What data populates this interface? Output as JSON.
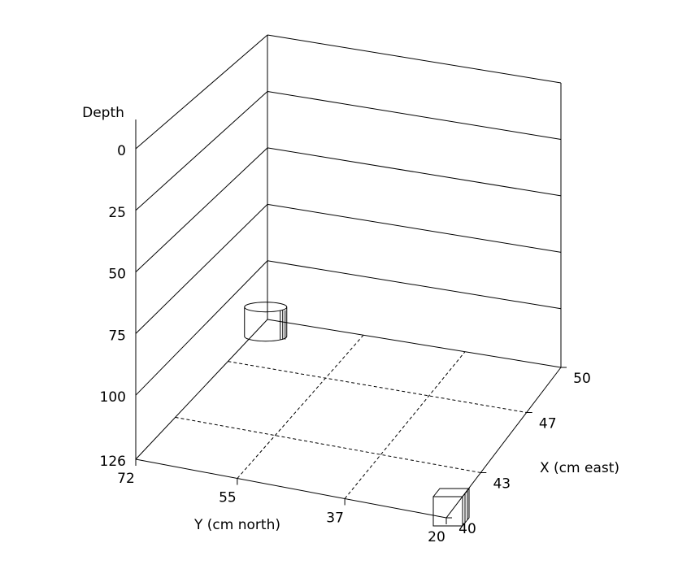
{
  "chart_data": {
    "type": "scatter3d",
    "z_label": "Depth",
    "x_label": "X (cm east)",
    "y_label": "Y (cm north)",
    "xlim": [
      40,
      50
    ],
    "xticks": [
      40,
      43,
      47,
      50
    ],
    "ylim": [
      72,
      20
    ],
    "yticks": [
      72,
      55,
      37,
      20
    ],
    "zlim": [
      0,
      126
    ],
    "zticks": [
      0,
      25,
      50,
      75,
      100,
      126
    ],
    "objects": [
      {
        "shape": "cylinder",
        "x": 49,
        "y": 70,
        "depth": 120,
        "color": "#a020a0"
      },
      {
        "shape": "cube",
        "x": 40,
        "y": 20,
        "depth": 126,
        "color": "#000000"
      }
    ]
  }
}
